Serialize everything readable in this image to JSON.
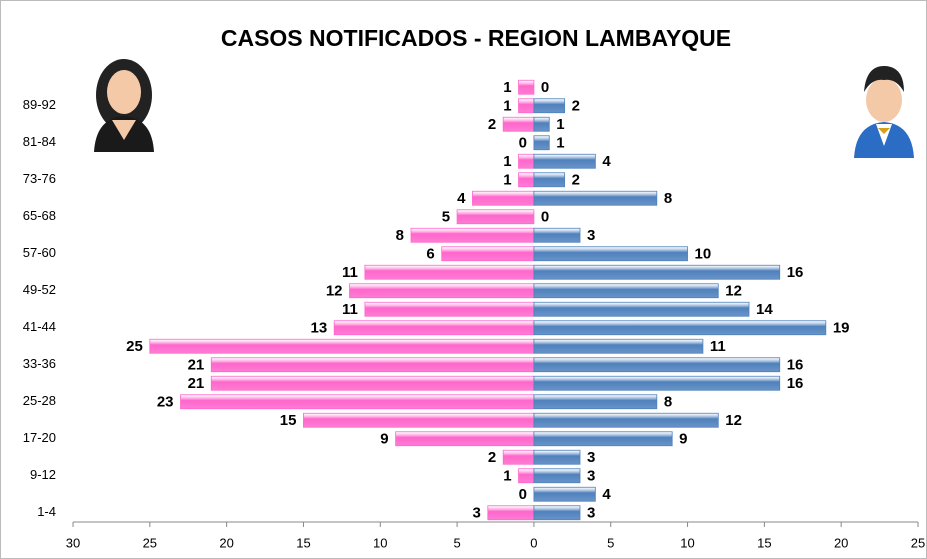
{
  "chart_data": {
    "type": "pyramid",
    "title": "CASOS NOTIFICADOS - REGION LAMBAYQUE",
    "categories": [
      "1-4",
      null,
      "9-12",
      null,
      "17-20",
      null,
      "25-28",
      null,
      "33-36",
      null,
      "41-44",
      null,
      "49-52",
      null,
      "57-60",
      null,
      "65-68",
      null,
      "73-76",
      null,
      "81-84",
      null,
      "89-92",
      null
    ],
    "series": [
      {
        "color": "#ff66cc",
        "side": "left",
        "values": [
          3,
          0,
          1,
          2,
          9,
          15,
          23,
          21,
          21,
          25,
          13,
          11,
          12,
          11,
          6,
          8,
          5,
          4,
          1,
          1,
          0,
          2,
          1,
          1
        ]
      },
      {
        "color": "#4f81bd",
        "side": "right",
        "values": [
          3,
          4,
          3,
          3,
          9,
          12,
          8,
          16,
          16,
          11,
          19,
          14,
          12,
          16,
          10,
          3,
          0,
          8,
          2,
          4,
          1,
          1,
          2,
          0
        ]
      }
    ],
    "xlim": [
      -30,
      25
    ],
    "xticks": [
      {
        "value": -30,
        "label": "30"
      },
      {
        "value": -25,
        "label": "25"
      },
      {
        "value": -20,
        "label": "20"
      },
      {
        "value": -15,
        "label": "15"
      },
      {
        "value": -10,
        "label": "10"
      },
      {
        "value": -5,
        "label": "5"
      },
      0,
      5,
      10,
      15,
      20,
      25
    ]
  }
}
